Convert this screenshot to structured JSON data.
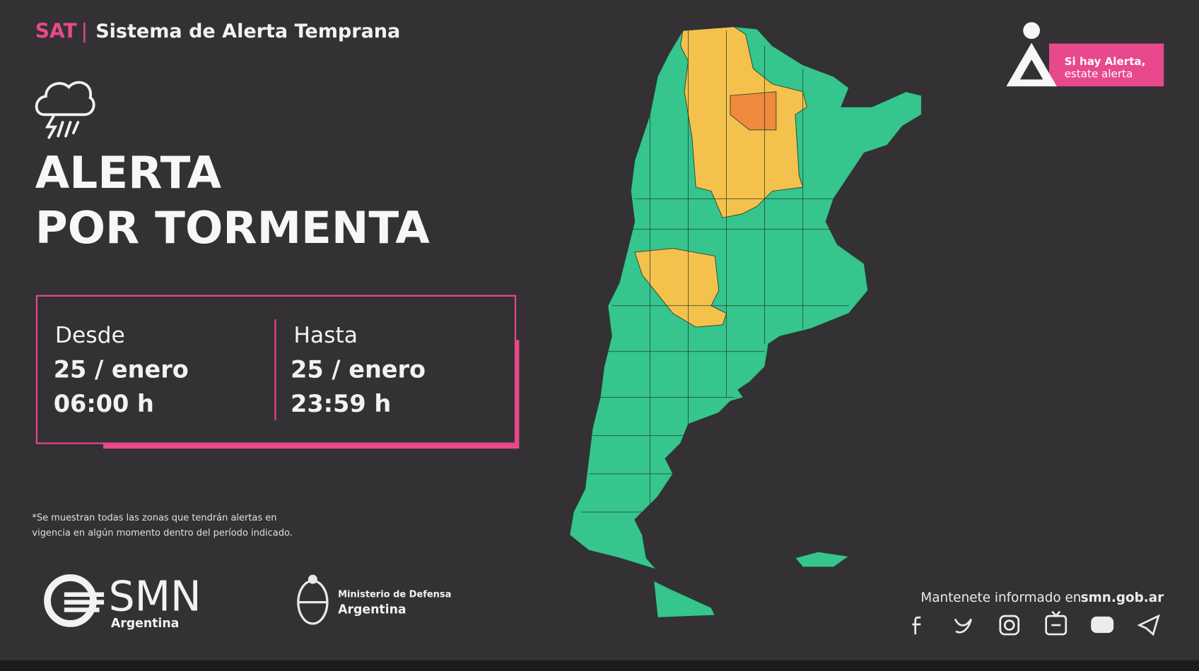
{
  "header": {
    "brand": "SAT",
    "separator": "|",
    "title": "Sistema de Alerta Temprana"
  },
  "alert": {
    "line1": "ALERTA",
    "line2": "POR TORMENTA"
  },
  "period": {
    "from": {
      "label": "Desde",
      "date": "25 / enero",
      "time": "06:00 h"
    },
    "to": {
      "label": "Hasta",
      "date": "25 / enero",
      "time": "23:59 h"
    }
  },
  "footnote": {
    "line1": "*Se muestran todas las zonas que tendrán alertas en",
    "line2": "vigencia en algún momento dentro del período indicado."
  },
  "logos": {
    "smn": "SMN",
    "smn_sub": "Argentina",
    "ministry_line1": "Ministerio de Defensa",
    "ministry_line2": "Argentina"
  },
  "badge": {
    "line1": "Si hay Alerta,",
    "line2": "estate alerta"
  },
  "footer": {
    "text": "Mantenete informado en",
    "site": "smn.gob.ar"
  }
}
